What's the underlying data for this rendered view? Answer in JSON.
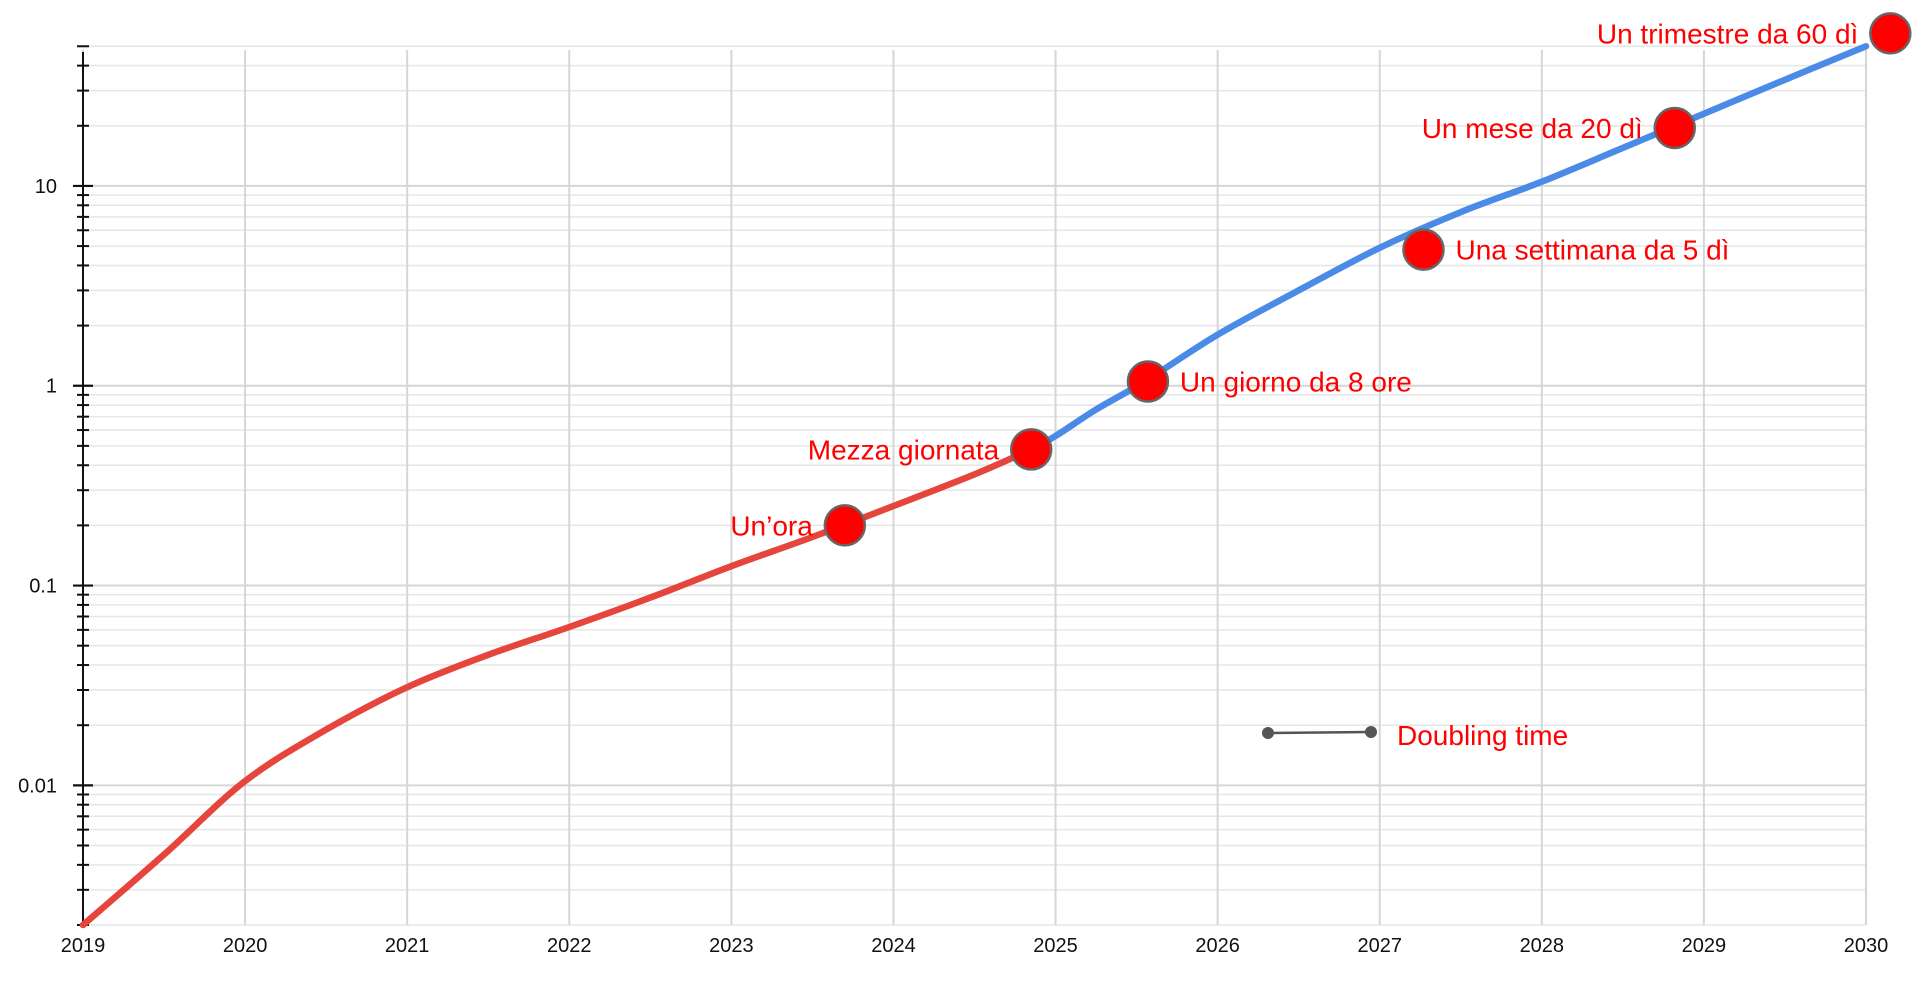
{
  "chart_data": {
    "type": "line",
    "title": "",
    "xlabel": "",
    "ylabel": "",
    "x_ticks": [
      "2019",
      "2020",
      "2021",
      "2022",
      "2023",
      "2024",
      "2025",
      "2026",
      "2027",
      "2028",
      "2029",
      "2030"
    ],
    "y_ticks": [
      "0.01",
      "0.1",
      "1",
      "10"
    ],
    "y_scale": "log",
    "xlim": [
      2019,
      2030
    ],
    "ylim": [
      0.002,
      55
    ],
    "grid": true,
    "series": [
      {
        "color": "#e5453c",
        "x": [
          2019.0,
          2019.5,
          2020.0,
          2020.5,
          2021.0,
          2021.5,
          2022.0,
          2022.5,
          2023.0,
          2023.5,
          2024.0,
          2024.5,
          2024.85
        ],
        "y": [
          0.002,
          0.0045,
          0.0105,
          0.019,
          0.031,
          0.045,
          0.062,
          0.087,
          0.125,
          0.175,
          0.25,
          0.36,
          0.48
        ]
      },
      {
        "color": "#4a8be8",
        "x": [
          2024.85,
          2025.0,
          2025.25,
          2025.55,
          2026.0,
          2026.5,
          2027.0,
          2027.5,
          2028.0,
          2028.5,
          2029.0,
          2029.5,
          2030.0
        ],
        "y": [
          0.48,
          0.56,
          0.76,
          1.05,
          1.8,
          3.0,
          4.9,
          7.4,
          10.5,
          15.5,
          23.0,
          34.0,
          50.0
        ]
      }
    ],
    "annotation_color": "#ff0000",
    "annotations": [
      {
        "label": "Un’ora",
        "x": 2023.7,
        "y": 0.2,
        "side": "left"
      },
      {
        "label": "Mezza giornata",
        "x": 2024.85,
        "y": 0.48,
        "side": "left"
      },
      {
        "label": "Un giorno da 8 ore",
        "x": 2025.57,
        "y": 1.05,
        "side": "right"
      },
      {
        "label": "Una settimana da 5 dì",
        "x": 2027.27,
        "y": 4.8,
        "side": "right"
      },
      {
        "label": "Un mese da 20 dì",
        "x": 2028.82,
        "y": 19.5,
        "side": "left"
      },
      {
        "label": "Un trimestre da 60 dì",
        "x": 2030.15,
        "y": 58,
        "side": "left"
      }
    ],
    "legend": {
      "label": "Doubling time",
      "placement": "bottom-right",
      "color": "#555555"
    }
  }
}
